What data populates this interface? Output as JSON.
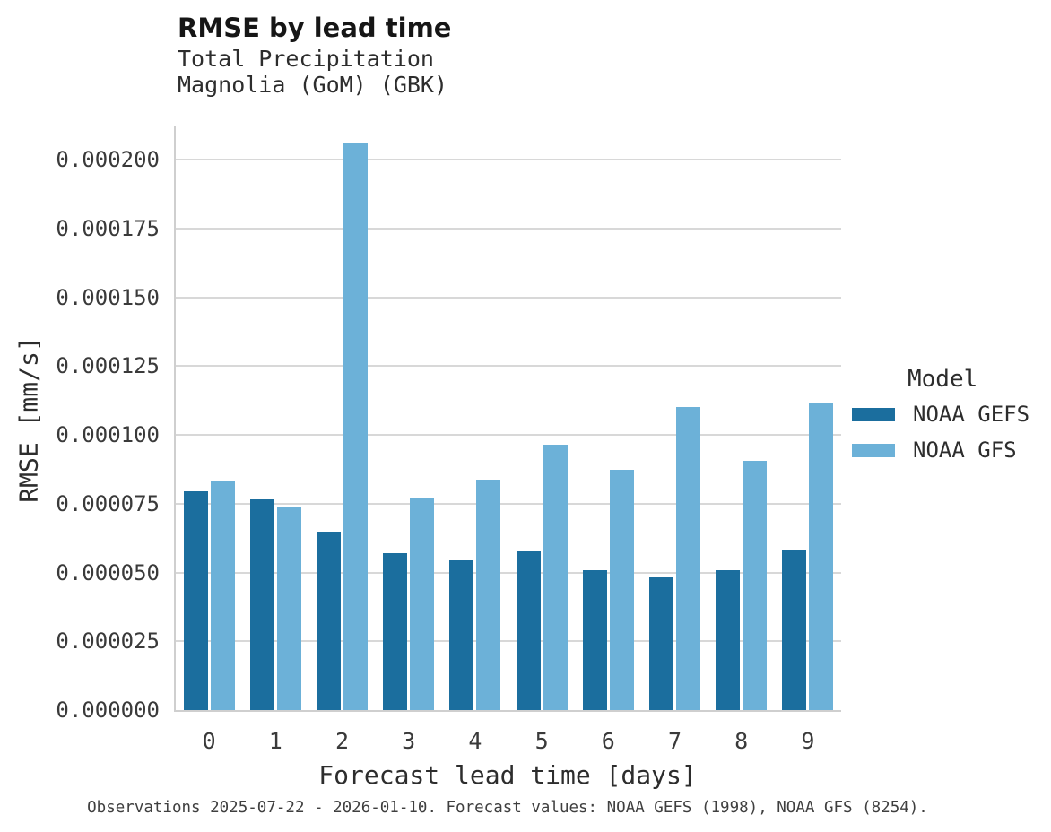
{
  "header": {
    "title": "RMSE by lead time",
    "subtitle_line1": "Total Precipitation",
    "subtitle_line2": "Magnolia (GoM) (GBK)"
  },
  "chart_data": {
    "type": "bar",
    "title": "RMSE by lead time",
    "subtitle": [
      "Total Precipitation",
      "Magnolia (GoM) (GBK)"
    ],
    "categories": [
      "0",
      "1",
      "2",
      "3",
      "4",
      "5",
      "6",
      "7",
      "8",
      "9"
    ],
    "series": [
      {
        "name": "NOAA GEFS",
        "color": "#1b6e9e",
        "values": [
          7.95e-05,
          7.65e-05,
          6.48e-05,
          5.7e-05,
          5.45e-05,
          5.78e-05,
          5.08e-05,
          4.82e-05,
          5.1e-05,
          5.85e-05
        ]
      },
      {
        "name": "NOAA GFS",
        "color": "#6cb1d8",
        "values": [
          8.3e-05,
          7.35e-05,
          0.000206,
          7.7e-05,
          8.38e-05,
          9.65e-05,
          8.75e-05,
          0.00011,
          9.05e-05,
          0.0001117
        ]
      }
    ],
    "xlabel": "Forecast lead time [days]",
    "ylabel": "RMSE [mm/s]",
    "ylim": [
      0,
      0.0002125
    ],
    "yticks": [
      "0.000000",
      "0.000025",
      "0.000050",
      "0.000075",
      "0.000100",
      "0.000125",
      "0.000150",
      "0.000175",
      "0.000200"
    ],
    "grid": "horizontal",
    "legend_position": "right",
    "gridline_color": "#d8d8d8",
    "spine_color": "#cfcfcf"
  },
  "legend": {
    "title": "Model",
    "entries": [
      {
        "label": "NOAA GEFS",
        "color": "#1b6e9e"
      },
      {
        "label": "NOAA GFS",
        "color": "#6cb1d8"
      }
    ]
  },
  "caption": "Observations 2025-07-22 - 2026-01-10. Forecast values: NOAA GEFS (1998), NOAA GFS (8254)."
}
